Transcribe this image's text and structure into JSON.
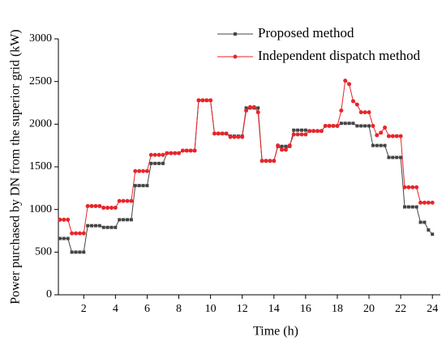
{
  "chart_data": {
    "type": "line",
    "xlabel": "Time (h)",
    "ylabel": "Power purchased by DN from the superior grid (kW)",
    "x": [
      0.5,
      0.75,
      1,
      1.25,
      1.5,
      1.75,
      2,
      2.25,
      2.5,
      2.75,
      3,
      3.25,
      3.5,
      3.75,
      4,
      4.25,
      4.5,
      4.75,
      5,
      5.25,
      5.5,
      5.75,
      6,
      6.25,
      6.5,
      6.75,
      7,
      7.25,
      7.5,
      7.75,
      8,
      8.25,
      8.5,
      8.75,
      9,
      9.25,
      9.5,
      9.75,
      10,
      10.25,
      10.5,
      10.75,
      11,
      11.25,
      11.5,
      11.75,
      12,
      12.25,
      12.5,
      12.75,
      13,
      13.25,
      13.5,
      13.75,
      14,
      14.25,
      14.5,
      14.75,
      15,
      15.25,
      15.5,
      15.75,
      16,
      16.25,
      16.5,
      16.75,
      17,
      17.25,
      17.5,
      17.75,
      18,
      18.25,
      18.5,
      18.75,
      19,
      19.25,
      19.5,
      19.75,
      20,
      20.25,
      20.5,
      20.75,
      21,
      21.25,
      21.5,
      21.75,
      22,
      22.25,
      22.5,
      22.75,
      23,
      23.25,
      23.5,
      23.75,
      24
    ],
    "series": [
      {
        "name": "Proposed method",
        "color": "#444444",
        "marker": "square",
        "values": [
          660,
          660,
          660,
          500,
          500,
          500,
          500,
          810,
          810,
          810,
          810,
          790,
          790,
          790,
          790,
          880,
          880,
          880,
          880,
          1280,
          1280,
          1280,
          1280,
          1540,
          1540,
          1540,
          1540,
          1660,
          1660,
          1660,
          1660,
          1690,
          1690,
          1690,
          1690,
          2280,
          2280,
          2280,
          2280,
          1890,
          1890,
          1890,
          1890,
          1860,
          1860,
          1860,
          1860,
          2190,
          2190,
          2190,
          2190,
          1570,
          1570,
          1570,
          1570,
          1740,
          1740,
          1740,
          1740,
          1930,
          1930,
          1930,
          1930,
          1920,
          1920,
          1920,
          1920,
          1980,
          1980,
          1980,
          1980,
          2010,
          2010,
          2010,
          2010,
          1980,
          1980,
          1980,
          1980,
          1750,
          1750,
          1750,
          1750,
          1610,
          1610,
          1610,
          1610,
          1030,
          1030,
          1030,
          1030,
          850,
          850,
          760,
          710
        ]
      },
      {
        "name": "Independent dispatch method",
        "color": "#e8252a",
        "marker": "circle",
        "values": [
          880,
          880,
          880,
          720,
          720,
          720,
          720,
          1040,
          1040,
          1040,
          1040,
          1020,
          1020,
          1020,
          1020,
          1100,
          1100,
          1100,
          1100,
          1450,
          1450,
          1450,
          1450,
          1640,
          1640,
          1640,
          1640,
          1660,
          1660,
          1660,
          1660,
          1690,
          1690,
          1690,
          1690,
          2280,
          2280,
          2280,
          2280,
          1890,
          1890,
          1890,
          1890,
          1850,
          1850,
          1850,
          1850,
          2160,
          2200,
          2200,
          2140,
          1570,
          1570,
          1570,
          1570,
          1750,
          1700,
          1700,
          1750,
          1880,
          1880,
          1880,
          1880,
          1920,
          1920,
          1920,
          1920,
          1980,
          1980,
          1980,
          1980,
          2160,
          2510,
          2470,
          2270,
          2230,
          2140,
          2140,
          2140,
          1980,
          1870,
          1900,
          1960,
          1860,
          1860,
          1860,
          1860,
          1260,
          1260,
          1260,
          1260,
          1080,
          1080,
          1080,
          1080
        ]
      }
    ],
    "xlim": [
      0.4,
      24.5
    ],
    "xticks": [
      2,
      4,
      6,
      8,
      10,
      12,
      14,
      16,
      18,
      20,
      22,
      24
    ],
    "ylim": [
      0,
      3000
    ],
    "yticks": [
      0,
      500,
      1000,
      1500,
      2000,
      2500,
      3000
    ],
    "legend": "upper right"
  }
}
